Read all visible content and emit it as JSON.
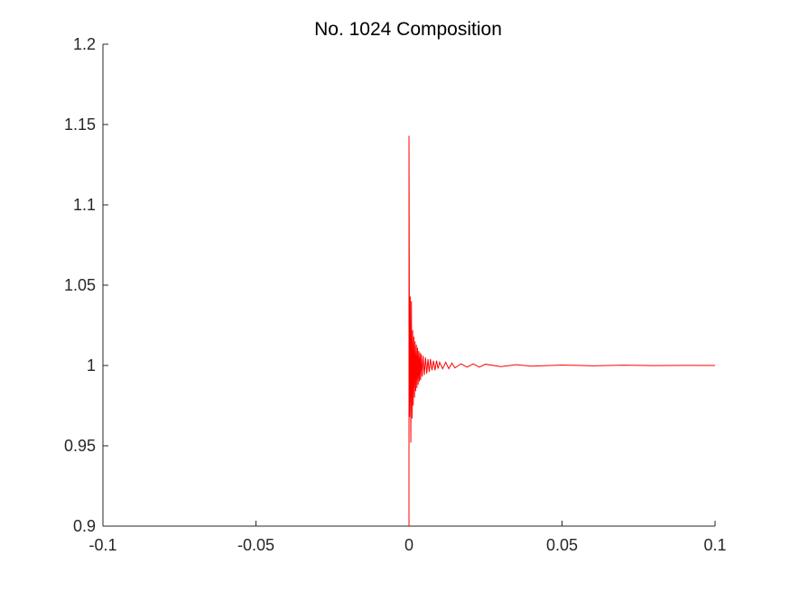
{
  "chart_data": {
    "type": "line",
    "title": "No. 1024 Composition",
    "xlabel": "",
    "ylabel": "",
    "xlim": [
      -0.1,
      0.1
    ],
    "ylim": [
      0.9,
      1.2
    ],
    "x_ticks": [
      -0.1,
      -0.05,
      0,
      0.05,
      0.1
    ],
    "x_tick_labels": [
      "-0.1",
      "-0.05",
      "0",
      "0.05",
      "0.1"
    ],
    "y_ticks": [
      0.9,
      0.95,
      1.0,
      1.05,
      1.1,
      1.15,
      1.2
    ],
    "y_tick_labels": [
      "0.9",
      "0.95",
      "1",
      "1.05",
      "1.1",
      "1.15",
      "1.2"
    ],
    "grid": false,
    "box": "off",
    "series": [
      {
        "color": "#ff0000",
        "x": [
          0,
          0,
          0.0002,
          0.0004,
          0.0006,
          0.0008,
          0.001,
          0.0012,
          0.0014,
          0.0016,
          0.0018,
          0.002,
          0.0022,
          0.0024,
          0.0026,
          0.0028,
          0.003,
          0.0032,
          0.0034,
          0.0036,
          0.0038,
          0.004,
          0.0043,
          0.0046,
          0.005,
          0.0054,
          0.0058,
          0.0062,
          0.0066,
          0.007,
          0.0075,
          0.008,
          0.0085,
          0.009,
          0.0095,
          0.01,
          0.011,
          0.012,
          0.013,
          0.014,
          0.015,
          0.017,
          0.019,
          0.021,
          0.023,
          0.025,
          0.03,
          0.035,
          0.04,
          0.05,
          0.06,
          0.07,
          0.08,
          0.09,
          0.1
        ],
        "y": [
          0.9,
          1.143,
          0.968,
          1.043,
          0.952,
          1.04,
          0.967,
          1.022,
          0.975,
          1.018,
          0.98,
          1.015,
          0.984,
          1.013,
          0.986,
          1.011,
          0.988,
          1.009,
          0.99,
          1.008,
          0.991,
          1.007,
          0.993,
          1.006,
          0.994,
          1.005,
          0.995,
          1.004,
          0.996,
          1.004,
          0.997,
          1.003,
          0.997,
          1.003,
          0.998,
          1.002,
          0.998,
          1.002,
          0.998,
          1.0015,
          0.9985,
          1.001,
          0.999,
          1.001,
          0.999,
          1.0008,
          0.9993,
          1.0005,
          0.9996,
          1.0003,
          0.9998,
          1.0002,
          0.9999,
          1.0001,
          1.0
        ]
      }
    ]
  }
}
